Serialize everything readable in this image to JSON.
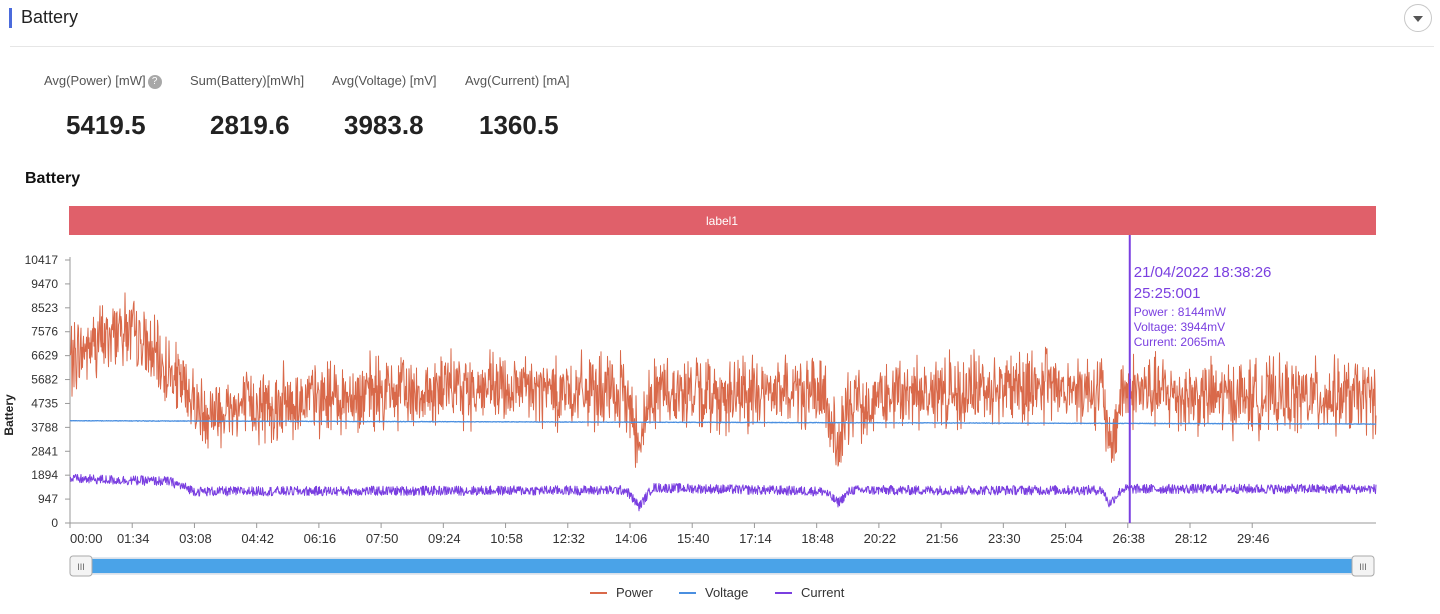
{
  "section": {
    "title": "Battery"
  },
  "stats": [
    {
      "label": "Avg(Power) [mW]",
      "value": "5419.5",
      "help": "?"
    },
    {
      "label": "Sum(Battery)[mWh]",
      "value": "2819.6"
    },
    {
      "label": "Avg(Voltage) [mV]",
      "value": "3983.8"
    },
    {
      "label": "Avg(Current) [mA]",
      "value": "1360.5"
    }
  ],
  "chart_title": "Battery",
  "chart_data": {
    "type": "line",
    "band_label": "label1",
    "ylabel": "Battery",
    "ylim": [
      0,
      10417
    ],
    "y_ticks": [
      0,
      947,
      1894,
      2841,
      3788,
      4735,
      5682,
      6629,
      7576,
      8523,
      9470,
      10417
    ],
    "x_range_seconds": [
      0,
      1973
    ],
    "x_ticks": [
      "00:00",
      "01:34",
      "03:08",
      "04:42",
      "06:16",
      "07:50",
      "09:24",
      "10:58",
      "12:32",
      "14:06",
      "15:40",
      "17:14",
      "18:48",
      "20:22",
      "21:56",
      "23:30",
      "25:04",
      "26:38",
      "28:12",
      "29:46"
    ],
    "grid": false,
    "legend_position": "bottom-center",
    "series": [
      {
        "name": "Power",
        "color": "#d9694a",
        "profile": [
          [
            0,
            6500
          ],
          [
            80,
            7800
          ],
          [
            170,
            5400
          ],
          [
            200,
            4400
          ],
          [
            300,
            4700
          ],
          [
            450,
            5100
          ],
          [
            600,
            5300
          ],
          [
            840,
            5100
          ],
          [
            860,
            3300
          ],
          [
            880,
            5300
          ],
          [
            1000,
            5000
          ],
          [
            1100,
            5300
          ],
          [
            1140,
            4900
          ],
          [
            1160,
            2900
          ],
          [
            1180,
            4800
          ],
          [
            1320,
            5200
          ],
          [
            1460,
            5500
          ],
          [
            1560,
            5300
          ],
          [
            1570,
            2700
          ],
          [
            1590,
            5300
          ],
          [
            1700,
            5000
          ],
          [
            1800,
            5000
          ],
          [
            1973,
            5000
          ]
        ],
        "noise": 2400
      },
      {
        "name": "Voltage",
        "color": "#4a8fe0",
        "profile": [
          [
            0,
            4050
          ],
          [
            900,
            3990
          ],
          [
            1973,
            3920
          ]
        ],
        "noise": 20
      },
      {
        "name": "Current",
        "color": "#7a3fe0",
        "profile": [
          [
            0,
            1750
          ],
          [
            150,
            1650
          ],
          [
            190,
            1250
          ],
          [
            840,
            1300
          ],
          [
            860,
            650
          ],
          [
            880,
            1400
          ],
          [
            1140,
            1250
          ],
          [
            1160,
            800
          ],
          [
            1180,
            1300
          ],
          [
            1560,
            1300
          ],
          [
            1570,
            750
          ],
          [
            1590,
            1350
          ],
          [
            1973,
            1350
          ]
        ],
        "noise": 380
      }
    ],
    "tooltip": {
      "date": "21/04/2022 18:38:26",
      "elapsed": "25:25:001",
      "x_seconds": 1601,
      "lines": [
        "Power  : 8144mW",
        "Voltage: 3944mV",
        "Current: 2065mA"
      ]
    }
  },
  "colors": {
    "band": "#e0606a",
    "slider": "#4aa3e8",
    "cursor": "#7a3fe0"
  },
  "slider": {
    "start": 0.0,
    "end": 1.0,
    "handle_glyph": "III"
  }
}
